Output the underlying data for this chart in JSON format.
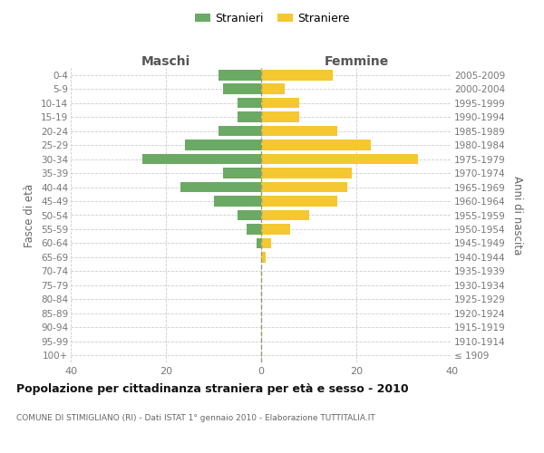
{
  "age_groups": [
    "100+",
    "95-99",
    "90-94",
    "85-89",
    "80-84",
    "75-79",
    "70-74",
    "65-69",
    "60-64",
    "55-59",
    "50-54",
    "45-49",
    "40-44",
    "35-39",
    "30-34",
    "25-29",
    "20-24",
    "15-19",
    "10-14",
    "5-9",
    "0-4"
  ],
  "birth_years": [
    "≤ 1909",
    "1910-1914",
    "1915-1919",
    "1920-1924",
    "1925-1929",
    "1930-1934",
    "1935-1939",
    "1940-1944",
    "1945-1949",
    "1950-1954",
    "1955-1959",
    "1960-1964",
    "1965-1969",
    "1970-1974",
    "1975-1979",
    "1980-1984",
    "1985-1989",
    "1990-1994",
    "1995-1999",
    "2000-2004",
    "2005-2009"
  ],
  "maschi": [
    0,
    0,
    0,
    0,
    0,
    0,
    0,
    0,
    1,
    3,
    5,
    10,
    17,
    8,
    25,
    16,
    9,
    5,
    5,
    8,
    9
  ],
  "femmine": [
    0,
    0,
    0,
    0,
    0,
    0,
    0,
    1,
    2,
    6,
    10,
    16,
    18,
    19,
    33,
    23,
    16,
    8,
    8,
    5,
    15
  ],
  "color_maschi": "#6aaa64",
  "color_femmine": "#f5c731",
  "title": "Popolazione per cittadinanza straniera per età e sesso - 2010",
  "subtitle": "COMUNE DI STIMIGLIANO (RI) - Dati ISTAT 1° gennaio 2010 - Elaborazione TUTTITALIA.IT",
  "label_maschi": "Maschi",
  "label_femmine": "Femmine",
  "ylabel_left": "Fasce di età",
  "ylabel_right": "Anni di nascita",
  "legend_maschi": "Stranieri",
  "legend_femmine": "Straniere",
  "xlim": 40,
  "bg_color": "#ffffff",
  "grid_color": "#cccccc",
  "bar_height": 0.75
}
